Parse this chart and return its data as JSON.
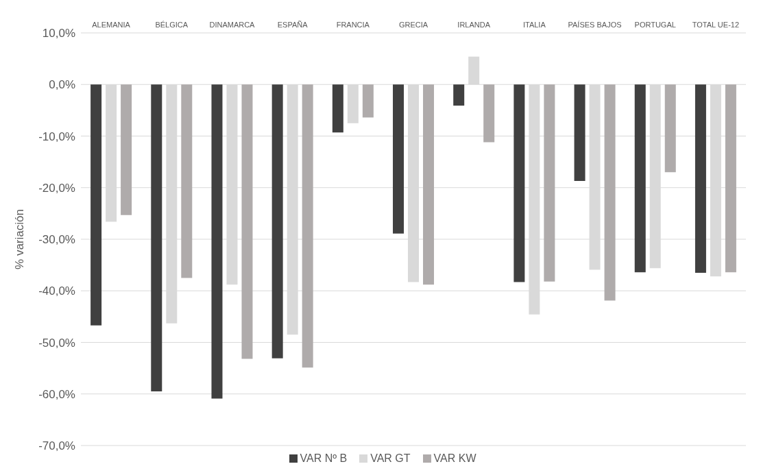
{
  "chart_data": {
    "type": "bar",
    "ylabel": "% variación",
    "categories": [
      "ALEMANIA",
      "BÉLGICA",
      "DINAMARCA",
      "ESPAÑA",
      "FRANCIA",
      "GRECIA",
      "IRLANDA",
      "ITALIA",
      "PAÍSES BAJOS",
      "PORTUGAL",
      "TOTAL UE-12"
    ],
    "series": [
      {
        "name": "VAR Nº B",
        "color": "#404040",
        "values": [
          -46.7,
          -59.5,
          -60.9,
          -53.1,
          -9.3,
          -28.9,
          -4.1,
          -38.3,
          -18.7,
          -36.4,
          -36.5
        ]
      },
      {
        "name": "VAR GT",
        "color": "#d9d9d9",
        "values": [
          -26.6,
          -46.3,
          -38.8,
          -48.5,
          -7.5,
          -38.3,
          5.4,
          -44.6,
          -35.9,
          -35.6,
          -37.2
        ]
      },
      {
        "name": "VAR KW",
        "color": "#afabab",
        "values": [
          -25.3,
          -37.5,
          -53.2,
          -54.9,
          -6.4,
          -38.8,
          -11.2,
          -38.2,
          -41.9,
          -17.0,
          -36.4
        ]
      }
    ],
    "ylim": [
      -70,
      10
    ],
    "yticks": [
      {
        "value": -70,
        "label": "-70,0%"
      },
      {
        "value": -60,
        "label": "-60,0%"
      },
      {
        "value": -50,
        "label": "-50,0%"
      },
      {
        "value": -40,
        "label": "-40,0%"
      },
      {
        "value": -30,
        "label": "-30,0%"
      },
      {
        "value": -20,
        "label": "-20,0%"
      },
      {
        "value": -10,
        "label": "-10,0%"
      },
      {
        "value": 0,
        "label": "0,0%"
      },
      {
        "value": 10,
        "label": "10,0%"
      }
    ],
    "grid": "y",
    "legend": "bottom"
  }
}
